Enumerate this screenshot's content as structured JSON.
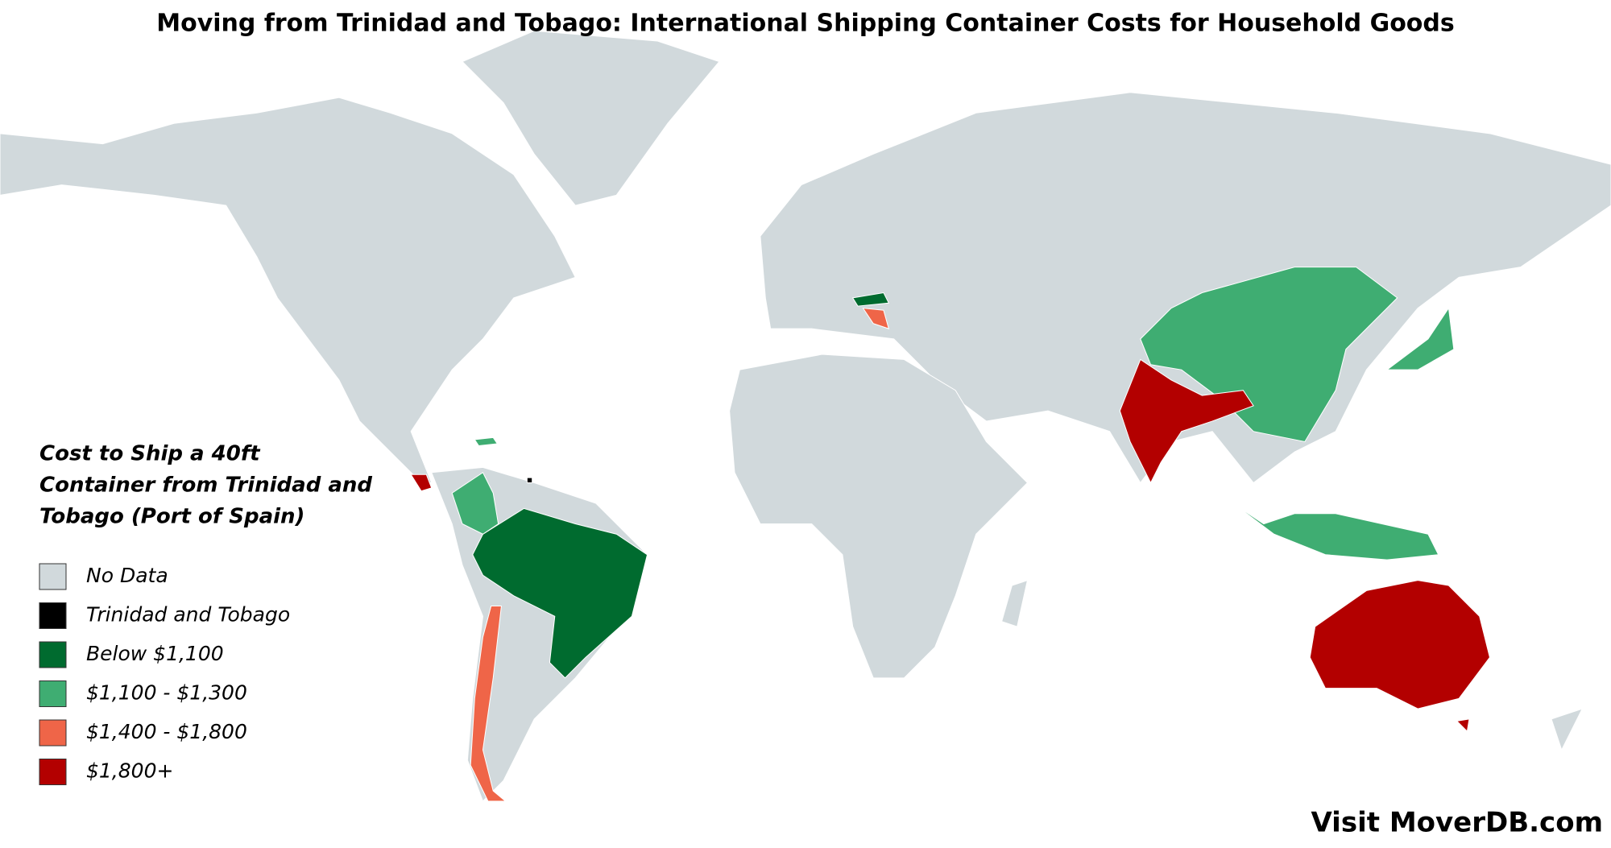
{
  "header": {
    "title": "Moving from Trinidad and Tobago: International Shipping Container Costs for Household Goods"
  },
  "legend": {
    "title": [
      "Cost to Ship a 40ft",
      "Container from Trinidad and",
      "Tobago (Port of Spain)"
    ],
    "items": [
      {
        "label": "No Data",
        "color": "#d1d9dc"
      },
      {
        "label": "Trinidad and Tobago",
        "color": "#000000"
      },
      {
        "label": "Below $1,100",
        "color": "#006b2f"
      },
      {
        "label": "$1,100 - $1,300",
        "color": "#3fad72"
      },
      {
        "label": "$1,400 - $1,800",
        "color": "#ef6548"
      },
      {
        "label": "$1,800+",
        "color": "#b30000"
      }
    ]
  },
  "footer": {
    "text": "Visit MoverDB.com"
  }
}
